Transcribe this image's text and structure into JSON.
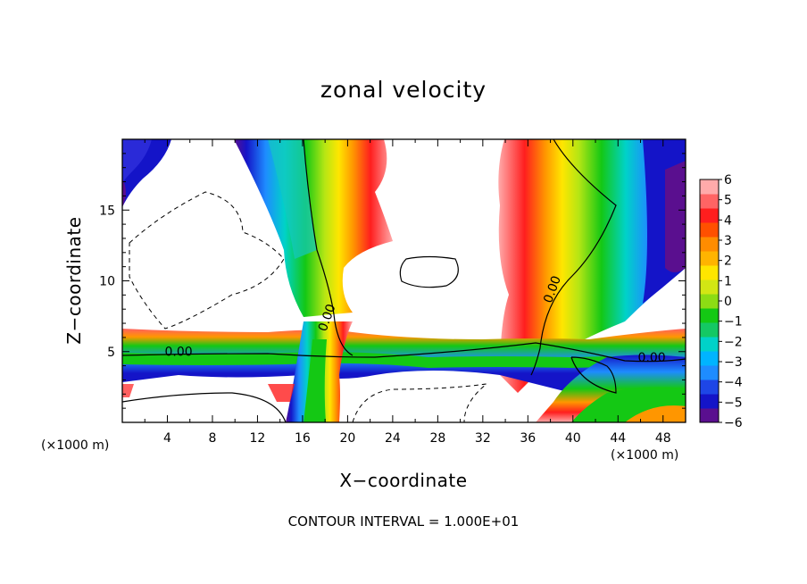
{
  "chart_data": {
    "type": "heatmap",
    "title": "zonal velocity",
    "xlabel": "X−coordinate",
    "ylabel": "Z−coordinate",
    "x_units": "(×1000 m)",
    "x_ticks": [
      4,
      8,
      12,
      16,
      20,
      24,
      28,
      32,
      36,
      40,
      44,
      48
    ],
    "y_ticks": [
      5,
      10,
      15
    ],
    "xlim": [
      0,
      50
    ],
    "ylim": [
      0,
      20
    ],
    "colorbar": {
      "ticks": [
        6,
        5,
        4,
        3,
        2,
        1,
        0,
        -1,
        -2,
        -3,
        -4,
        -5,
        -6
      ],
      "tick_labels": [
        "6",
        "5",
        "4",
        "3",
        "2",
        "1",
        "0",
        "−1",
        "−2",
        "−3",
        "−4",
        "−5",
        "−6"
      ],
      "range": [
        -6,
        6
      ],
      "out_of_range": "white"
    },
    "contour_label": "0.00",
    "contour_labels_at": [
      [
        5.0,
        4.7
      ],
      [
        18.5,
        7.3
      ],
      [
        38.5,
        9.3
      ],
      [
        47.0,
        4.3
      ]
    ],
    "contour_interval_text": "CONTOUR INTERVAL = 1.000E+01",
    "grid": false,
    "legend": "colorbar-right"
  }
}
